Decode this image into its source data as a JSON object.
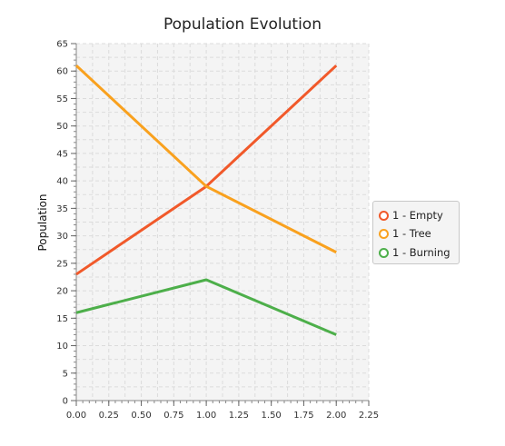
{
  "chart_data": {
    "type": "line",
    "title": "Population Evolution",
    "xlabel": "",
    "ylabel": "Population",
    "xlim": [
      0,
      2.25
    ],
    "ylim": [
      0,
      65
    ],
    "x_ticks": [
      "0.00",
      "0.25",
      "0.50",
      "0.75",
      "1.00",
      "1.25",
      "1.50",
      "1.75",
      "2.00",
      "2.25"
    ],
    "y_ticks": [
      "0",
      "5",
      "10",
      "15",
      "20",
      "25",
      "30",
      "35",
      "40",
      "45",
      "50",
      "55",
      "60",
      "65"
    ],
    "grid": true,
    "legend_position": "right",
    "series": [
      {
        "name": "1 - Empty",
        "color": "#f1592a",
        "x": [
          0,
          1,
          2
        ],
        "y": [
          23,
          39,
          61
        ]
      },
      {
        "name": "1 - Tree",
        "color": "#f9a11e",
        "x": [
          0,
          1,
          2
        ],
        "y": [
          61,
          39,
          27
        ]
      },
      {
        "name": "1 - Burning",
        "color": "#4daf4a",
        "x": [
          0,
          1,
          2
        ],
        "y": [
          16,
          22,
          12
        ]
      }
    ]
  }
}
